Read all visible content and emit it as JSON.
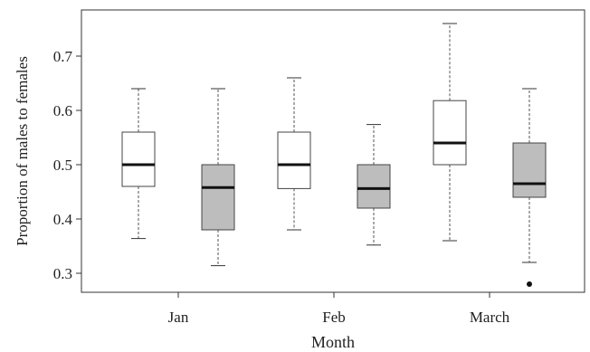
{
  "chart_data": {
    "type": "boxplot",
    "xlabel": "Month",
    "ylabel": "Proportion of males to females",
    "categories": [
      "Jan",
      "Feb",
      "March"
    ],
    "ylim": [
      0.265,
      0.785
    ],
    "yticks": [
      0.3,
      0.4,
      0.5,
      0.6,
      0.7
    ],
    "ytick_labels": [
      "0.3",
      "0.4",
      "0.5",
      "0.6",
      "0.7"
    ],
    "grid": false,
    "groups": [
      {
        "fill": "#ffffff",
        "boxes": [
          {
            "category": "Jan",
            "whisker_low": 0.364,
            "q1": 0.46,
            "median": 0.5,
            "q3": 0.56,
            "whisker_high": 0.64,
            "outliers": []
          },
          {
            "category": "Feb",
            "whisker_low": 0.38,
            "q1": 0.456,
            "median": 0.5,
            "q3": 0.56,
            "whisker_high": 0.66,
            "outliers": []
          },
          {
            "category": "March",
            "whisker_low": 0.36,
            "q1": 0.5,
            "median": 0.54,
            "q3": 0.618,
            "whisker_high": 0.76,
            "outliers": []
          }
        ]
      },
      {
        "fill": "#bdbdbd",
        "boxes": [
          {
            "category": "Jan",
            "whisker_low": 0.314,
            "q1": 0.38,
            "median": 0.458,
            "q3": 0.5,
            "whisker_high": 0.64,
            "outliers": []
          },
          {
            "category": "Feb",
            "whisker_low": 0.352,
            "q1": 0.42,
            "median": 0.456,
            "q3": 0.5,
            "whisker_high": 0.574,
            "outliers": []
          },
          {
            "category": "March",
            "whisker_low": 0.32,
            "q1": 0.44,
            "median": 0.465,
            "q3": 0.54,
            "whisker_high": 0.64,
            "outliers": [
              0.28
            ]
          }
        ]
      }
    ]
  }
}
